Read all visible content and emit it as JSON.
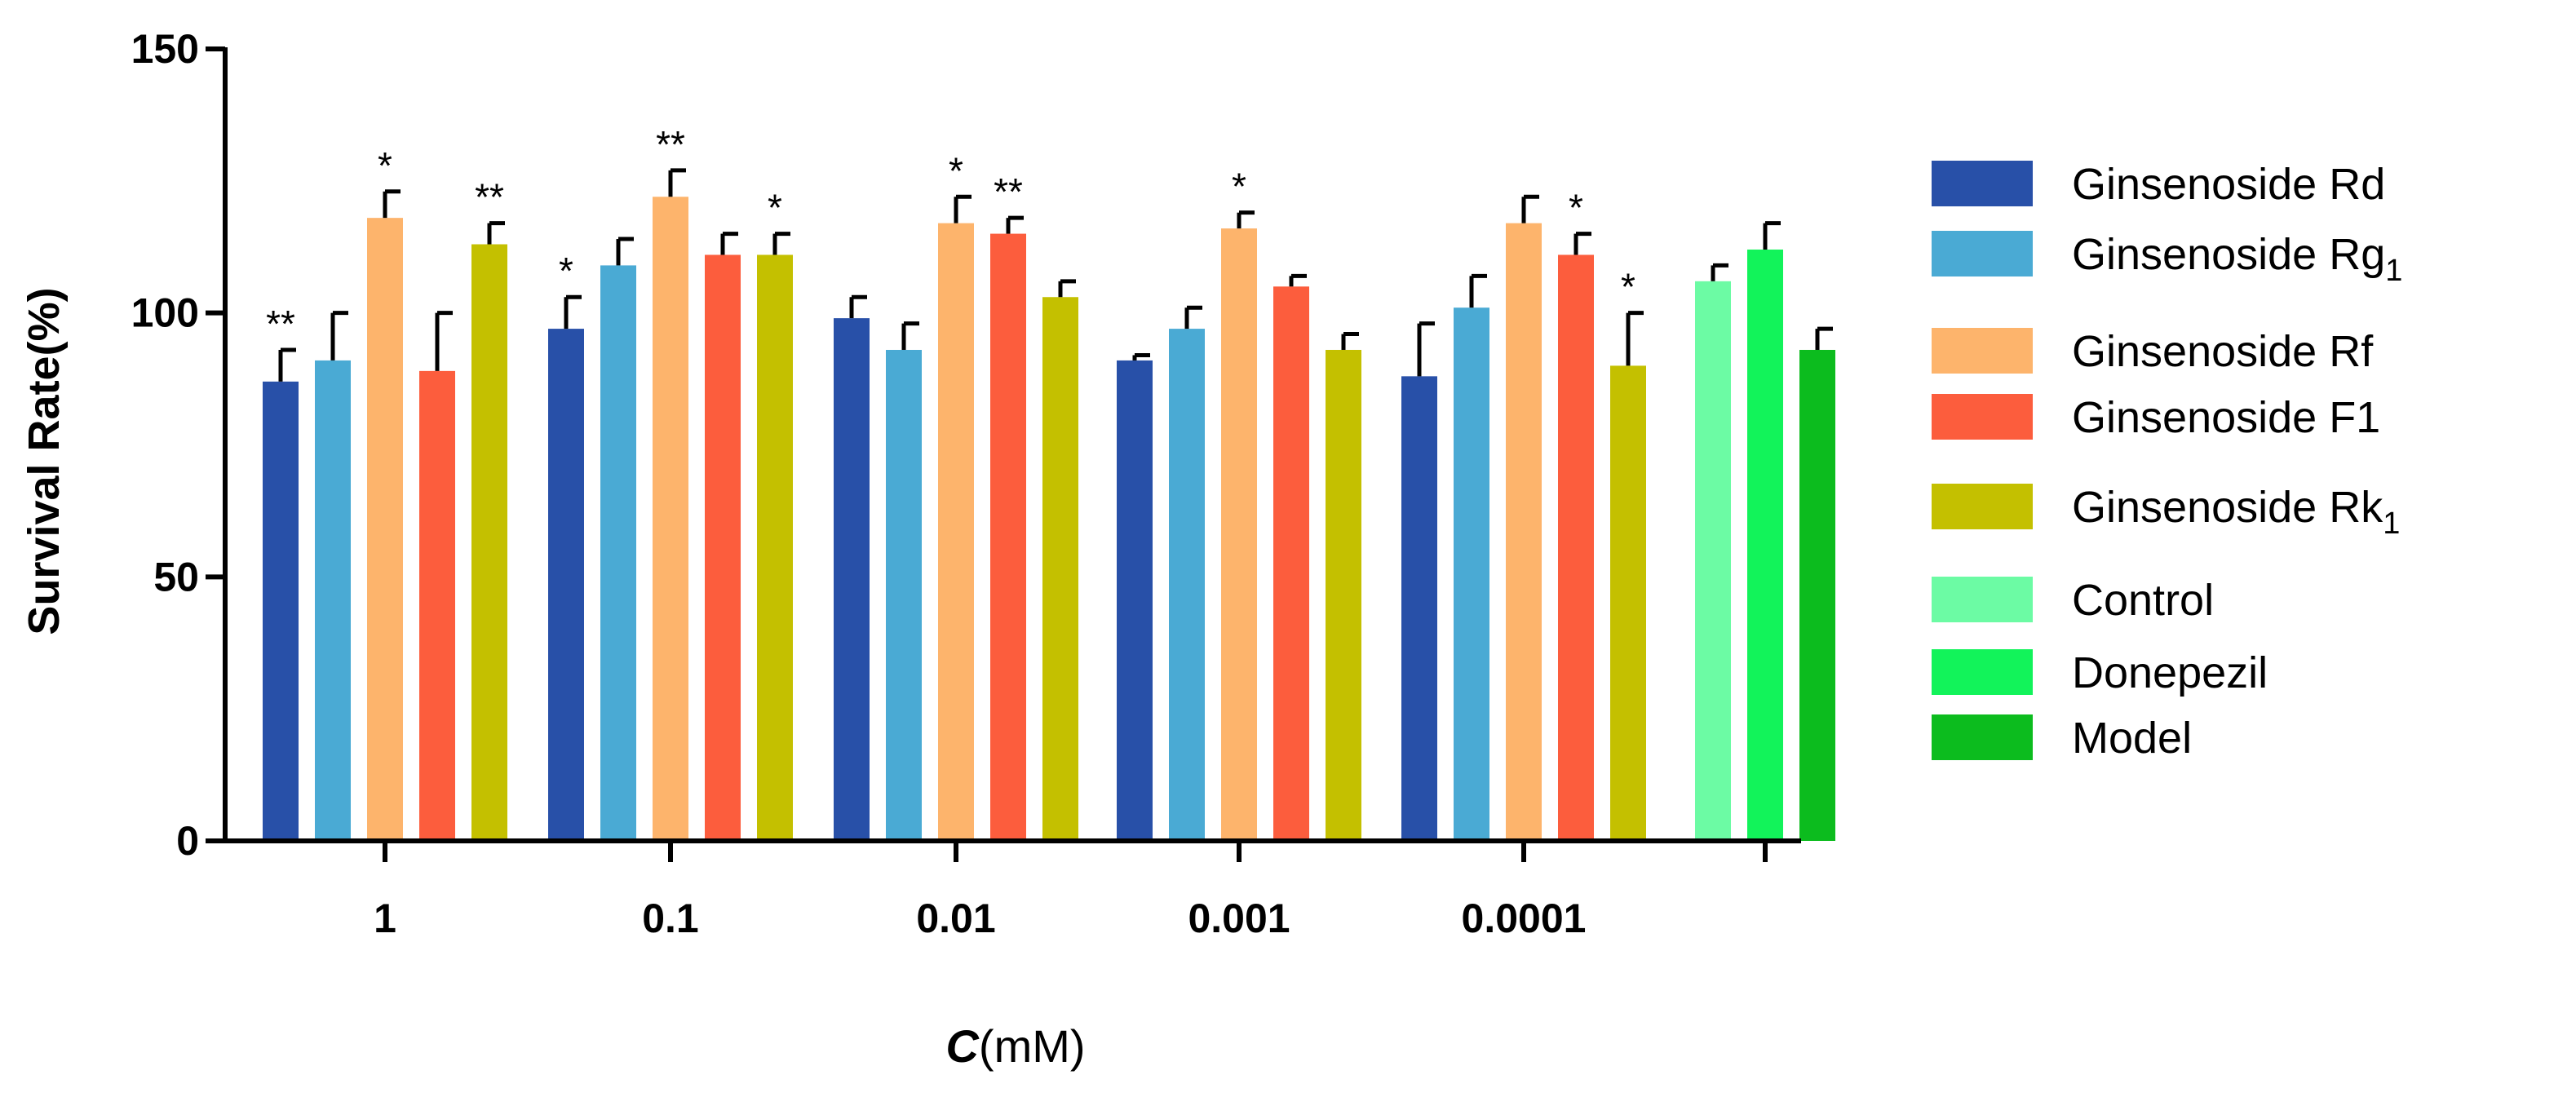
{
  "chart_data": {
    "type": "bar",
    "title": "",
    "ylabel": "Survival Rate(%)",
    "xlabel": {
      "var": "C",
      "unit": "(mM)"
    },
    "ylim": [
      0,
      150
    ],
    "yticks": [
      "0",
      "50",
      "100",
      "150"
    ],
    "grid": false,
    "legend_position": "right",
    "groups": [
      {
        "label": "1",
        "bars": [
          {
            "series": "Ginsenoside Rd",
            "value": 87,
            "error": 6,
            "sig": "**"
          },
          {
            "series": "Ginsenoside Rg1",
            "value": 91,
            "error": 9,
            "sig": ""
          },
          {
            "series": "Ginsenoside Rf",
            "value": 118,
            "error": 5,
            "sig": "*"
          },
          {
            "series": "Ginsenoside F1",
            "value": 89,
            "error": 11,
            "sig": ""
          },
          {
            "series": "Ginsenoside Rk1",
            "value": 113,
            "error": 4,
            "sig": "**"
          }
        ]
      },
      {
        "label": "0.1",
        "bars": [
          {
            "series": "Ginsenoside Rd",
            "value": 97,
            "error": 6,
            "sig": "*"
          },
          {
            "series": "Ginsenoside Rg1",
            "value": 109,
            "error": 5,
            "sig": ""
          },
          {
            "series": "Ginsenoside Rf",
            "value": 122,
            "error": 5,
            "sig": "**"
          },
          {
            "series": "Ginsenoside F1",
            "value": 111,
            "error": 4,
            "sig": ""
          },
          {
            "series": "Ginsenoside Rk1",
            "value": 111,
            "error": 4,
            "sig": "*"
          }
        ]
      },
      {
        "label": "0.01",
        "bars": [
          {
            "series": "Ginsenoside Rd",
            "value": 99,
            "error": 4,
            "sig": ""
          },
          {
            "series": "Ginsenoside Rg1",
            "value": 93,
            "error": 5,
            "sig": ""
          },
          {
            "series": "Ginsenoside Rf",
            "value": 117,
            "error": 5,
            "sig": "*"
          },
          {
            "series": "Ginsenoside F1",
            "value": 115,
            "error": 3,
            "sig": "**"
          },
          {
            "series": "Ginsenoside Rk1",
            "value": 103,
            "error": 3,
            "sig": ""
          }
        ]
      },
      {
        "label": "0.001",
        "bars": [
          {
            "series": "Ginsenoside Rd",
            "value": 91,
            "error": 1,
            "sig": ""
          },
          {
            "series": "Ginsenoside Rg1",
            "value": 97,
            "error": 4,
            "sig": ""
          },
          {
            "series": "Ginsenoside Rf",
            "value": 116,
            "error": 3,
            "sig": "*"
          },
          {
            "series": "Ginsenoside F1",
            "value": 105,
            "error": 2,
            "sig": ""
          },
          {
            "series": "Ginsenoside Rk1",
            "value": 93,
            "error": 3,
            "sig": ""
          }
        ]
      },
      {
        "label": "0.0001",
        "bars": [
          {
            "series": "Ginsenoside Rd",
            "value": 88,
            "error": 10,
            "sig": ""
          },
          {
            "series": "Ginsenoside Rg1",
            "value": 101,
            "error": 6,
            "sig": ""
          },
          {
            "series": "Ginsenoside Rf",
            "value": 117,
            "error": 5,
            "sig": ""
          },
          {
            "series": "Ginsenoside F1",
            "value": 111,
            "error": 4,
            "sig": "*"
          },
          {
            "series": "Ginsenoside Rk1",
            "value": 90,
            "error": 10,
            "sig": "*"
          }
        ]
      },
      {
        "label": "",
        "bars": [
          {
            "series": "Control",
            "value": 106,
            "error": 3,
            "sig": ""
          },
          {
            "series": "Donepezil",
            "value": 112,
            "error": 5,
            "sig": ""
          },
          {
            "series": "Model",
            "value": 93,
            "error": 4,
            "sig": ""
          }
        ]
      }
    ],
    "legend": [
      {
        "name": "Ginsenoside Rd",
        "base": "Ginsenoside Rd",
        "sub": "",
        "color": "#2850A8"
      },
      {
        "name": "Ginsenoside Rg1",
        "base": "Ginsenoside Rg",
        "sub": "1",
        "color": "#4AAAD4"
      },
      {
        "name": "Ginsenoside Rf",
        "base": "Ginsenoside Rf",
        "sub": "",
        "color": "#FDB46C"
      },
      {
        "name": "Ginsenoside F1",
        "base": "Ginsenoside F1",
        "sub": "",
        "color": "#FC5D3D"
      },
      {
        "name": "Ginsenoside Rk1",
        "base": "Ginsenoside Rk",
        "sub": "1",
        "color": "#C4C000"
      },
      {
        "name": "Control",
        "base": "Control",
        "sub": "",
        "color": "#6CFBA4"
      },
      {
        "name": "Donepezil",
        "base": "Donepezil",
        "sub": "",
        "color": "#12F35A"
      },
      {
        "name": "Model",
        "base": "Model",
        "sub": "",
        "color": "#0CBC1E"
      }
    ]
  }
}
